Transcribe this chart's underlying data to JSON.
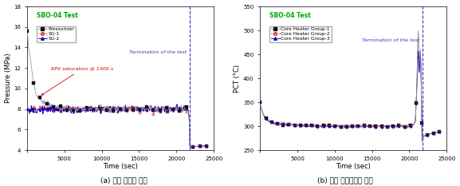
{
  "title_left": "SBO-04 Test",
  "title_right": "SBO-04 Test",
  "termination_time": 21800,
  "termination_label": "Termination of the test",
  "left": {
    "xlabel": "Time (sec)",
    "ylabel": "Pressure (MPa)",
    "xlim": [
      0,
      25000
    ],
    "ylim": [
      4,
      18
    ],
    "yticks": [
      4,
      6,
      8,
      10,
      12,
      14,
      16,
      18
    ],
    "xticks": [
      0,
      5000,
      10000,
      15000,
      20000,
      25000
    ],
    "caption": "(a) 계통 압력의 변화",
    "annotation": "RPV saturation @ 1400 s",
    "legend": [
      "Pressurizer",
      "SG-1",
      "SG-2"
    ]
  },
  "right": {
    "xlabel": "Time (sec)",
    "ylabel": "PCT (°C)",
    "xlim": [
      0,
      25000
    ],
    "ylim": [
      250,
      550
    ],
    "yticks": [
      250,
      300,
      350,
      400,
      450,
      500,
      550
    ],
    "xticks": [
      0,
      5000,
      10000,
      15000,
      20000,
      25000
    ],
    "caption": "(b) 노심 최대온도의 변화",
    "legend": [
      "Core Heater Group-1",
      "Core Heater Group-2",
      "Core Heater Group-3"
    ]
  }
}
